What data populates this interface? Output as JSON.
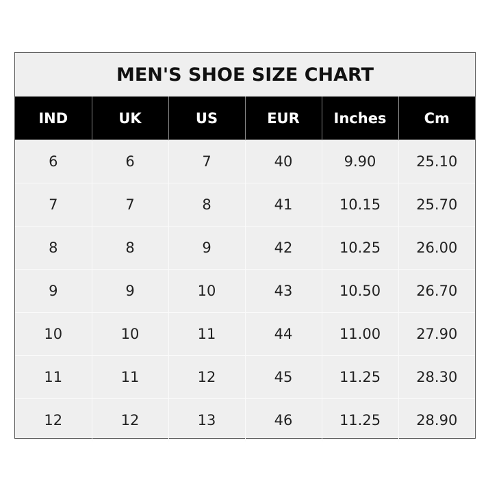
{
  "title": "MEN'S SHOE SIZE CHART",
  "headers": [
    "IND",
    "UK",
    "US",
    "EUR",
    "Inches",
    "Cm"
  ],
  "rows": [
    [
      "6",
      "6",
      "7",
      "40",
      "9.90",
      "25.10"
    ],
    [
      "7",
      "7",
      "8",
      "41",
      "10.15",
      "25.70"
    ],
    [
      "8",
      "8",
      "9",
      "42",
      "10.25",
      "26.00"
    ],
    [
      "9",
      "9",
      "10",
      "43",
      "10.50",
      "26.70"
    ],
    [
      "10",
      "10",
      "11",
      "44",
      "11.00",
      "27.90"
    ],
    [
      "11",
      "11",
      "12",
      "45",
      "11.25",
      "28.30"
    ],
    [
      "12",
      "12",
      "13",
      "46",
      "11.25",
      "28.90"
    ]
  ],
  "colors": {
    "header_bg": "#000000",
    "body_bg": "#efefef"
  }
}
